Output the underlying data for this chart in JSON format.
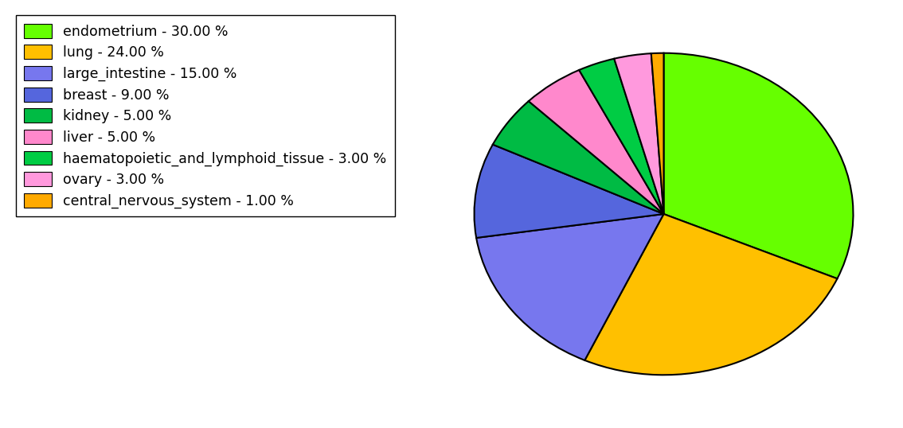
{
  "labels": [
    "endometrium",
    "lung",
    "large_intestine",
    "breast",
    "kidney",
    "liver",
    "haematopoietic_and_lymphoid_tissue",
    "ovary",
    "central_nervous_system"
  ],
  "values": [
    30,
    24,
    15,
    9,
    5,
    5,
    3,
    3,
    1
  ],
  "colors": [
    "#66FF00",
    "#FFC000",
    "#7777EE",
    "#5566DD",
    "#00BB44",
    "#FF88CC",
    "#00CC44",
    "#FF99DD",
    "#FFAA00"
  ],
  "legend_labels": [
    "endometrium - 30.00 %",
    "lung - 24.00 %",
    "large_intestine - 15.00 %",
    "breast - 9.00 %",
    "kidney - 5.00 %",
    "liver - 5.00 %",
    "haematopoietic_and_lymphoid_tissue - 3.00 %",
    "ovary - 3.00 %",
    "central_nervous_system - 1.00 %"
  ],
  "figsize": [
    11.34,
    5.38
  ],
  "dpi": 100,
  "startangle": 90,
  "legend_fontsize": 12.5
}
